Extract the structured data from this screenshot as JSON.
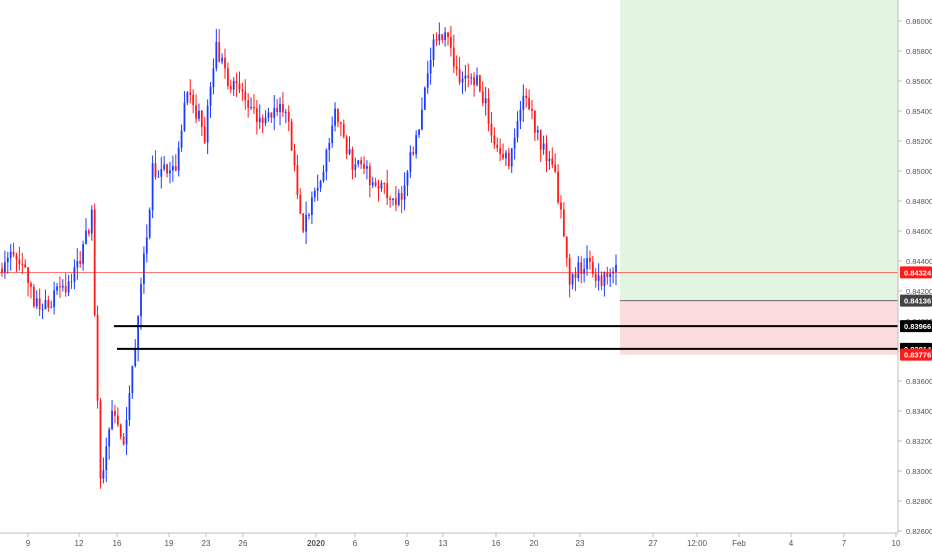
{
  "chart_data": {
    "type": "candlestick",
    "instrument_hint": "",
    "ylim": [
      0.826,
      0.861
    ],
    "y_ticks": [
      "0.86000",
      "0.85800",
      "0.85600",
      "0.85400",
      "0.85200",
      "0.85000",
      "0.84800",
      "0.84600",
      "0.84400",
      "0.84200",
      "0.84000",
      "0.83800",
      "0.83600",
      "0.83400",
      "0.83200",
      "0.83000",
      "0.82800",
      "0.82600"
    ],
    "x_ticks": [
      "9",
      "12",
      "16",
      "19",
      "23",
      "26",
      "2020",
      "6",
      "9",
      "13",
      "16",
      "20",
      "23",
      "27",
      "12:00",
      "Feb",
      "4",
      "7",
      "10"
    ],
    "x_tick_bold": [
      "2020"
    ],
    "current_price": {
      "value": 0.84324,
      "label": "0.84324",
      "color": "#ff1a1a"
    },
    "levels": [
      {
        "value": 0.84136,
        "label": "0.84136",
        "color": "#444444",
        "line": "thin"
      },
      {
        "value": 0.83966,
        "label": "0.83966",
        "color": "#000000",
        "line": "thick"
      },
      {
        "value": 0.83814,
        "label": "0.83814",
        "color": "#000000",
        "line": "thick"
      },
      {
        "value": 0.83776,
        "label": "0.83776",
        "color": "#ff1a1a",
        "line": "none"
      }
    ],
    "position": {
      "entry": 0.84136,
      "target_top": 0.861,
      "stop": 0.83776,
      "profit_color": "#e3f4e1",
      "loss_color": "#fcdcdc"
    },
    "colors": {
      "up": "#1a3cff",
      "down": "#ff1a1a",
      "axis_text": "#555555"
    },
    "ohlc_segments": [
      {
        "from": 0.8435,
        "to": 0.8445,
        "n": 6,
        "seed": 1
      },
      {
        "from": 0.8445,
        "to": 0.8405,
        "n": 8,
        "seed": 2
      },
      {
        "from": 0.8405,
        "to": 0.843,
        "n": 12,
        "seed": 3
      },
      {
        "from": 0.843,
        "to": 0.847,
        "n": 6,
        "seed": 4
      },
      {
        "from": 0.847,
        "to": 0.829,
        "n": 3,
        "seed": 5
      },
      {
        "from": 0.829,
        "to": 0.8345,
        "n": 4,
        "seed": 6
      },
      {
        "from": 0.8345,
        "to": 0.8315,
        "n": 4,
        "seed": 7
      },
      {
        "from": 0.8315,
        "to": 0.84,
        "n": 5,
        "seed": 8
      },
      {
        "from": 0.84,
        "to": 0.85,
        "n": 5,
        "seed": 9
      },
      {
        "from": 0.85,
        "to": 0.8505,
        "n": 8,
        "seed": 10
      },
      {
        "from": 0.8505,
        "to": 0.8555,
        "n": 4,
        "seed": 11
      },
      {
        "from": 0.8555,
        "to": 0.8525,
        "n": 6,
        "seed": 12
      },
      {
        "from": 0.8525,
        "to": 0.8585,
        "n": 4,
        "seed": 13
      },
      {
        "from": 0.8585,
        "to": 0.856,
        "n": 4,
        "seed": 14
      },
      {
        "from": 0.856,
        "to": 0.8535,
        "n": 10,
        "seed": 15
      },
      {
        "from": 0.8535,
        "to": 0.8545,
        "n": 10,
        "seed": 16
      },
      {
        "from": 0.8545,
        "to": 0.846,
        "n": 6,
        "seed": 17
      },
      {
        "from": 0.846,
        "to": 0.8495,
        "n": 6,
        "seed": 18
      },
      {
        "from": 0.8495,
        "to": 0.854,
        "n": 5,
        "seed": 19
      },
      {
        "from": 0.854,
        "to": 0.8505,
        "n": 6,
        "seed": 20
      },
      {
        "from": 0.8505,
        "to": 0.849,
        "n": 10,
        "seed": 21
      },
      {
        "from": 0.849,
        "to": 0.848,
        "n": 6,
        "seed": 22
      },
      {
        "from": 0.848,
        "to": 0.852,
        "n": 6,
        "seed": 23
      },
      {
        "from": 0.852,
        "to": 0.8585,
        "n": 6,
        "seed": 24
      },
      {
        "from": 0.8585,
        "to": 0.8595,
        "n": 4,
        "seed": 25
      },
      {
        "from": 0.8595,
        "to": 0.8555,
        "n": 5,
        "seed": 26
      },
      {
        "from": 0.8555,
        "to": 0.8565,
        "n": 6,
        "seed": 27
      },
      {
        "from": 0.8565,
        "to": 0.852,
        "n": 6,
        "seed": 28
      },
      {
        "from": 0.852,
        "to": 0.8505,
        "n": 5,
        "seed": 29
      },
      {
        "from": 0.8505,
        "to": 0.855,
        "n": 5,
        "seed": 30
      },
      {
        "from": 0.855,
        "to": 0.8525,
        "n": 5,
        "seed": 31
      },
      {
        "from": 0.8525,
        "to": 0.8495,
        "n": 6,
        "seed": 32
      },
      {
        "from": 0.8495,
        "to": 0.843,
        "n": 5,
        "seed": 33
      },
      {
        "from": 0.843,
        "to": 0.844,
        "n": 6,
        "seed": 34
      },
      {
        "from": 0.844,
        "to": 0.8425,
        "n": 5,
        "seed": 35
      },
      {
        "from": 0.8425,
        "to": 0.8437,
        "n": 5,
        "seed": 36
      }
    ]
  }
}
